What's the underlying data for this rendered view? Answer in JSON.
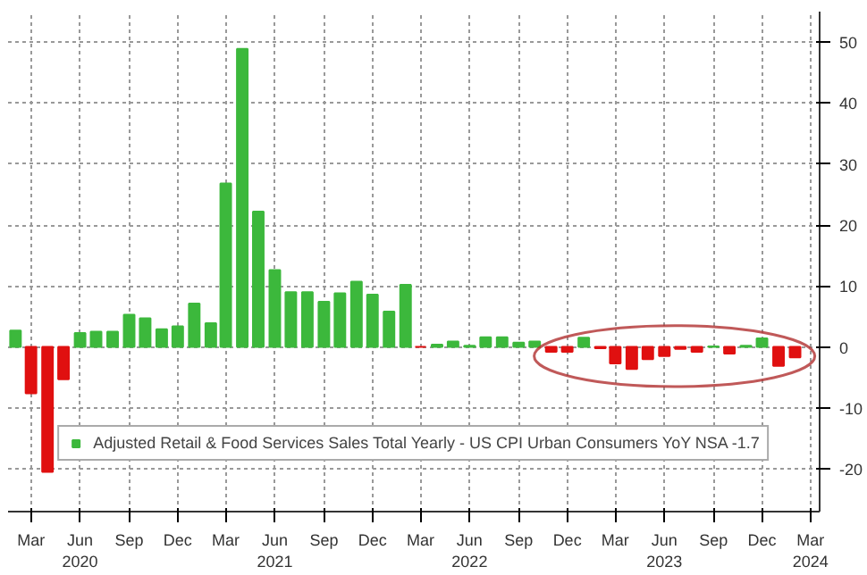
{
  "chart_data": {
    "type": "bar",
    "x": [
      "2020-02",
      "2020-03",
      "2020-04",
      "2020-05",
      "2020-06",
      "2020-07",
      "2020-08",
      "2020-09",
      "2020-10",
      "2020-11",
      "2020-12",
      "2021-01",
      "2021-02",
      "2021-03",
      "2021-04",
      "2021-05",
      "2021-06",
      "2021-07",
      "2021-08",
      "2021-09",
      "2021-10",
      "2021-11",
      "2021-12",
      "2022-01",
      "2022-02",
      "2022-03",
      "2022-04",
      "2022-05",
      "2022-06",
      "2022-07",
      "2022-08",
      "2022-09",
      "2022-10",
      "2022-11",
      "2022-12",
      "2023-01",
      "2023-02",
      "2023-03",
      "2023-04",
      "2023-05",
      "2023-06",
      "2023-07",
      "2023-08",
      "2023-09",
      "2023-10",
      "2023-11",
      "2023-12",
      "2024-01",
      "2024-02"
    ],
    "series": [
      {
        "name": "Adjusted Retail & Food Services Sales Total Yearly - US CPI Urban Consumers YoY NSA -1.7",
        "color": "#3cb83c",
        "values": [
          2.7,
          -7.6,
          -20.5,
          -5.3,
          2.3,
          2.5,
          2.5,
          5.3,
          4.7,
          2.9,
          3.4,
          7.1,
          3.9,
          26.8,
          48.9,
          22.2,
          12.6,
          9.0,
          9.0,
          7.4,
          8.8,
          10.7,
          8.6,
          5.8,
          10.2,
          0,
          0.4,
          0.9,
          0.2,
          1.6,
          1.6,
          0.7,
          0.9,
          -0.8,
          -0.8,
          1.5,
          -0.2,
          -2.7,
          -3.6,
          -2.0,
          -1.5,
          -0.3,
          -0.8,
          0.1,
          -1.1,
          0.2,
          1.4,
          -3.1,
          -1.7
        ],
        "colors": [
          "#3cb83c",
          "#e01010",
          "#e01010",
          "#e01010",
          "#3cb83c",
          "#3cb83c",
          "#3cb83c",
          "#3cb83c",
          "#3cb83c",
          "#3cb83c",
          "#3cb83c",
          "#3cb83c",
          "#3cb83c",
          "#3cb83c",
          "#3cb83c",
          "#3cb83c",
          "#3cb83c",
          "#3cb83c",
          "#3cb83c",
          "#3cb83c",
          "#3cb83c",
          "#3cb83c",
          "#3cb83c",
          "#3cb83c",
          "#3cb83c",
          "#e01010",
          "#3cb83c",
          "#3cb83c",
          "#3cb83c",
          "#3cb83c",
          "#3cb83c",
          "#3cb83c",
          "#3cb83c",
          "#e01010",
          "#e01010",
          "#3cb83c",
          "#e01010",
          "#e01010",
          "#e01010",
          "#e01010",
          "#e01010",
          "#e01010",
          "#e01010",
          "#3cb83c",
          "#e01010",
          "#3cb83c",
          "#3cb83c",
          "#e01010",
          "#e01010"
        ]
      }
    ],
    "xlim": [
      "2020-01-18",
      "2024-03-18"
    ],
    "xticks": [
      {
        "value": "2020-03",
        "label": "Mar"
      },
      {
        "value": "2020-06",
        "label": "Jun\n2020"
      },
      {
        "value": "2020-09",
        "label": "Sep"
      },
      {
        "value": "2020-12",
        "label": "Dec"
      },
      {
        "value": "2021-03",
        "label": "Mar"
      },
      {
        "value": "2021-06",
        "label": "Jun\n2021"
      },
      {
        "value": "2021-09",
        "label": "Sep"
      },
      {
        "value": "2021-12",
        "label": "Dec"
      },
      {
        "value": "2022-03",
        "label": "Mar"
      },
      {
        "value": "2022-06",
        "label": "Jun\n2022"
      },
      {
        "value": "2022-09",
        "label": "Sep"
      },
      {
        "value": "2022-12",
        "label": "Dec"
      },
      {
        "value": "2023-03",
        "label": "Mar"
      },
      {
        "value": "2023-06",
        "label": "Jun\n2023"
      },
      {
        "value": "2023-09",
        "label": "Sep"
      },
      {
        "value": "2023-12",
        "label": "Dec"
      },
      {
        "value": "2024-03",
        "label": "Mar\n2024"
      }
    ],
    "ylim": [
      -27,
      55
    ],
    "yticks": [
      -20,
      -10,
      0,
      10,
      20,
      30,
      40,
      50
    ],
    "grid": true,
    "legend": "bottom"
  }
}
